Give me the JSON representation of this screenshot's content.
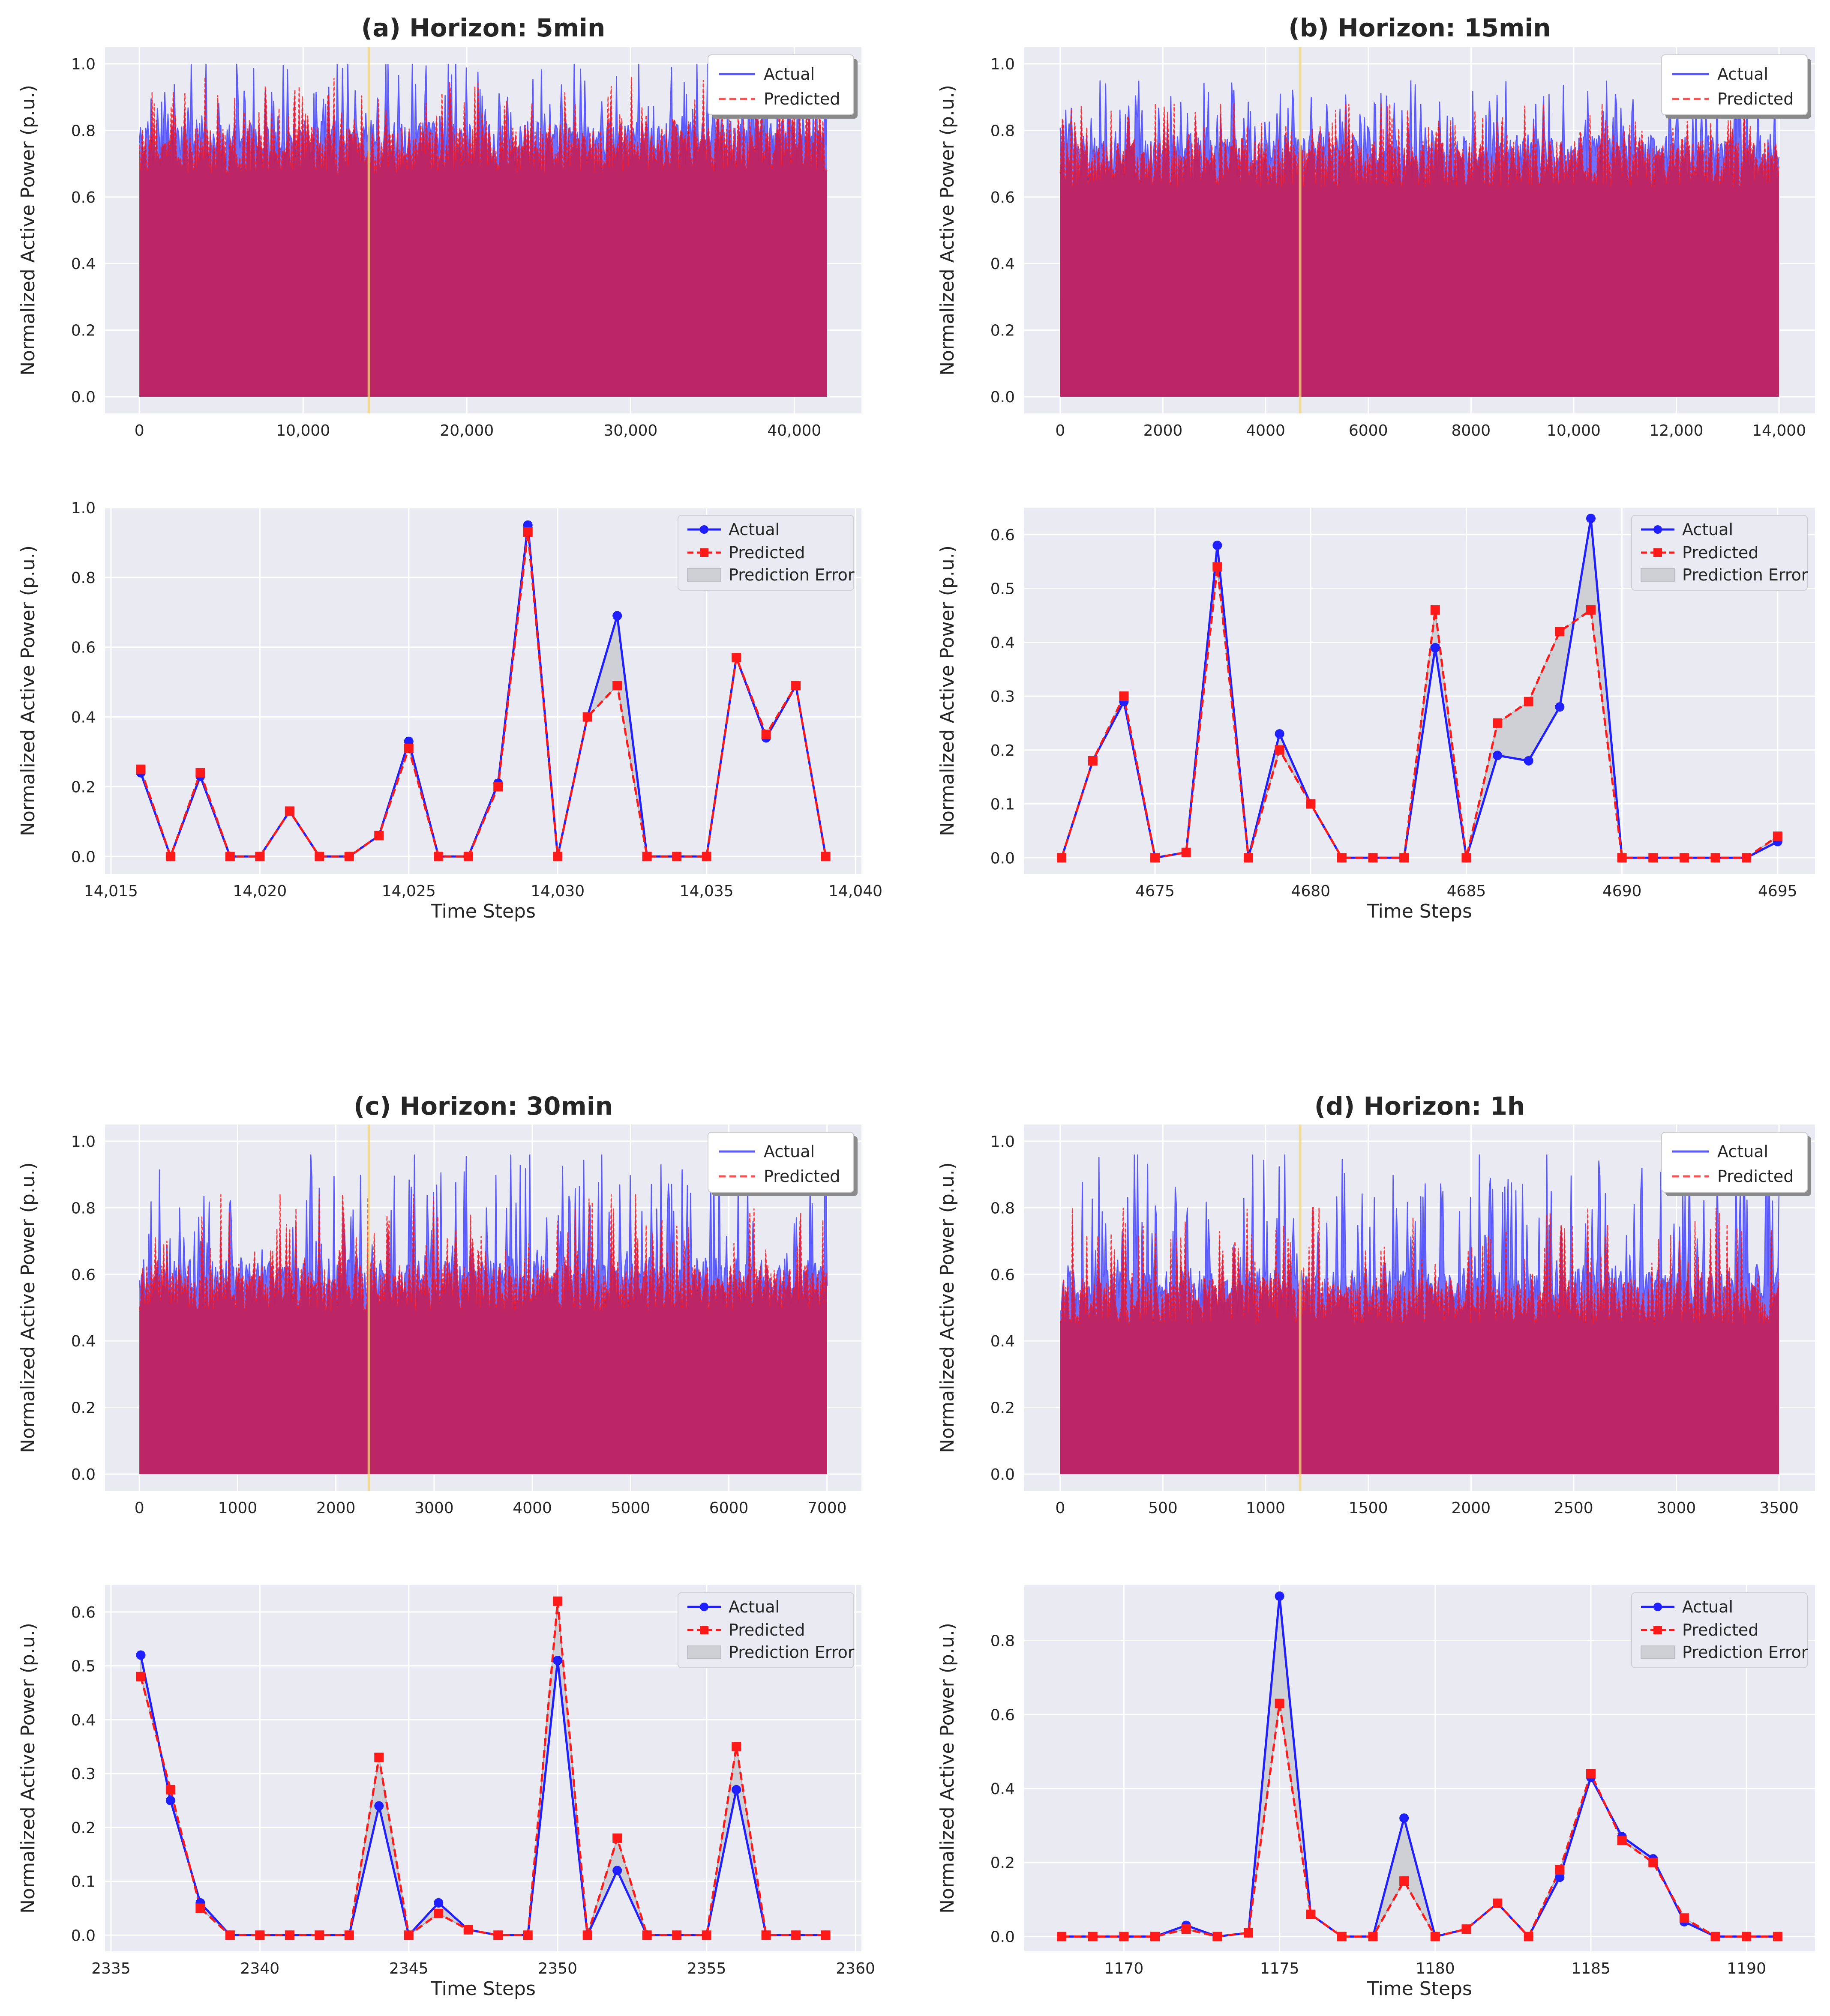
{
  "chart_data": [
    {
      "id": "a-overview",
      "type": "line",
      "title": "(a) Horizon: 5min",
      "xlabel": "",
      "ylabel": "Normalized Active Power (p.u.)",
      "xlim": [
        -2100,
        44100
      ],
      "ylim": [
        -0.05,
        1.05
      ],
      "xticks": [
        0,
        10000,
        20000,
        30000,
        40000
      ],
      "xtick_labels": [
        "0",
        "10,000",
        "20,000",
        "30,000",
        "40,000"
      ],
      "yticks": [
        0,
        0.2,
        0.4,
        0.6,
        0.8,
        1.0
      ],
      "ytick_labels": [
        "0.0",
        "0.2",
        "0.4",
        "0.6",
        "0.8",
        "1.0"
      ],
      "x_end": 42000,
      "highlight_x": 14016,
      "seed": 11,
      "envelope": {
        "actual_base": 0.76,
        "pred_base": 0.74,
        "actual_spike_max": 1.0,
        "pred_spike_max": 0.96
      },
      "legend": {
        "position": "upper-right",
        "entries": [
          "Actual",
          "Predicted"
        ]
      }
    },
    {
      "id": "a-zoom",
      "type": "line",
      "title": "",
      "xlabel": "Time Steps",
      "ylabel": "Normalized Active Power (p.u.)",
      "xlim": [
        14014.8,
        14040.2
      ],
      "ylim": [
        -0.05,
        1.0
      ],
      "xticks": [
        14015,
        14020,
        14025,
        14030,
        14035,
        14040
      ],
      "xtick_labels": [
        "14,015",
        "14,020",
        "14,025",
        "14,030",
        "14,035",
        "14,040"
      ],
      "yticks": [
        0,
        0.2,
        0.4,
        0.6,
        0.8,
        1.0
      ],
      "ytick_labels": [
        "0.0",
        "0.2",
        "0.4",
        "0.6",
        "0.8",
        "1.0"
      ],
      "x": [
        14016,
        14017,
        14018,
        14019,
        14020,
        14021,
        14022,
        14023,
        14024,
        14025,
        14026,
        14027,
        14028,
        14029,
        14030,
        14031,
        14032,
        14033,
        14034,
        14035,
        14036,
        14037,
        14038,
        14039
      ],
      "series": [
        {
          "name": "Actual",
          "values": [
            0.24,
            0.0,
            0.23,
            0.0,
            0.0,
            0.13,
            0.0,
            0.0,
            0.06,
            0.33,
            0.0,
            0.0,
            0.21,
            0.95,
            0.0,
            0.4,
            0.69,
            0.0,
            0.0,
            0.0,
            0.57,
            0.34,
            0.49,
            0.0
          ]
        },
        {
          "name": "Predicted",
          "values": [
            0.25,
            0.0,
            0.24,
            0.0,
            0.0,
            0.13,
            0.0,
            0.0,
            0.06,
            0.31,
            0.0,
            0.0,
            0.2,
            0.93,
            0.0,
            0.4,
            0.49,
            0.0,
            0.0,
            0.0,
            0.57,
            0.35,
            0.49,
            0.0
          ]
        }
      ],
      "legend": {
        "position": "upper-right",
        "entries": [
          "Actual",
          "Predicted",
          "Prediction Error"
        ]
      }
    },
    {
      "id": "b-overview",
      "type": "line",
      "title": "(b) Horizon: 15min",
      "xlabel": "",
      "ylabel": "Normalized Active Power (p.u.)",
      "xlim": [
        -700,
        14700
      ],
      "ylim": [
        -0.05,
        1.05
      ],
      "xticks": [
        0,
        2000,
        4000,
        6000,
        8000,
        10000,
        12000,
        14000
      ],
      "xtick_labels": [
        "0",
        "2000",
        "4000",
        "6000",
        "8000",
        "10,000",
        "12,000",
        "14,000"
      ],
      "yticks": [
        0,
        0.2,
        0.4,
        0.6,
        0.8,
        1.0
      ],
      "ytick_labels": [
        "0.0",
        "0.2",
        "0.4",
        "0.6",
        "0.8",
        "1.0"
      ],
      "x_end": 14000,
      "highlight_x": 4672,
      "seed": 23,
      "envelope": {
        "actual_base": 0.72,
        "pred_base": 0.7,
        "actual_spike_max": 0.95,
        "pred_spike_max": 0.88
      },
      "legend": {
        "position": "upper-right",
        "entries": [
          "Actual",
          "Predicted"
        ]
      }
    },
    {
      "id": "b-zoom",
      "type": "line",
      "title": "",
      "xlabel": "Time Steps",
      "ylabel": "Normalized Active Power (p.u.)",
      "xlim": [
        4670.8,
        4696.2
      ],
      "ylim": [
        -0.03,
        0.65
      ],
      "xticks": [
        4675,
        4680,
        4685,
        4690,
        4695
      ],
      "xtick_labels": [
        "4675",
        "4680",
        "4685",
        "4690",
        "4695"
      ],
      "yticks": [
        0,
        0.1,
        0.2,
        0.3,
        0.4,
        0.5,
        0.6
      ],
      "ytick_labels": [
        "0.0",
        "0.1",
        "0.2",
        "0.3",
        "0.4",
        "0.5",
        "0.6"
      ],
      "x": [
        4672,
        4673,
        4674,
        4675,
        4676,
        4677,
        4678,
        4679,
        4680,
        4681,
        4682,
        4683,
        4684,
        4685,
        4686,
        4687,
        4688,
        4689,
        4690,
        4691,
        4692,
        4693,
        4694,
        4695
      ],
      "series": [
        {
          "name": "Actual",
          "values": [
            0.0,
            0.18,
            0.29,
            0.0,
            0.01,
            0.58,
            0.0,
            0.23,
            0.1,
            0.0,
            0.0,
            0.0,
            0.39,
            0.0,
            0.19,
            0.18,
            0.28,
            0.63,
            0.0,
            0.0,
            0.0,
            0.0,
            0.0,
            0.03
          ]
        },
        {
          "name": "Predicted",
          "values": [
            0.0,
            0.18,
            0.3,
            0.0,
            0.01,
            0.54,
            0.0,
            0.2,
            0.1,
            0.0,
            0.0,
            0.0,
            0.46,
            0.0,
            0.25,
            0.29,
            0.42,
            0.46,
            0.0,
            0.0,
            0.0,
            0.0,
            0.0,
            0.04
          ]
        }
      ],
      "legend": {
        "position": "upper-right",
        "entries": [
          "Actual",
          "Predicted",
          "Prediction Error"
        ]
      }
    },
    {
      "id": "c-overview",
      "type": "line",
      "title": "(c) Horizon: 30min",
      "xlabel": "",
      "ylabel": "Normalized Active Power (p.u.)",
      "xlim": [
        -350,
        7350
      ],
      "ylim": [
        -0.05,
        1.05
      ],
      "xticks": [
        0,
        1000,
        2000,
        3000,
        4000,
        5000,
        6000,
        7000
      ],
      "xtick_labels": [
        "0",
        "1000",
        "2000",
        "3000",
        "4000",
        "5000",
        "6000",
        "7000"
      ],
      "yticks": [
        0,
        0.2,
        0.4,
        0.6,
        0.8,
        1.0
      ],
      "ytick_labels": [
        "0.0",
        "0.2",
        "0.4",
        "0.6",
        "0.8",
        "1.0"
      ],
      "x_end": 7000,
      "highlight_x": 2336,
      "seed": 37,
      "envelope": {
        "actual_base": 0.58,
        "pred_base": 0.56,
        "actual_spike_max": 0.96,
        "pred_spike_max": 0.84
      },
      "legend": {
        "position": "upper-right",
        "entries": [
          "Actual",
          "Predicted"
        ]
      }
    },
    {
      "id": "c-zoom",
      "type": "line",
      "title": "",
      "xlabel": "Time Steps",
      "ylabel": "Normalized Active Power (p.u.)",
      "xlim": [
        2334.8,
        2360.2
      ],
      "ylim": [
        -0.03,
        0.65
      ],
      "xticks": [
        2335,
        2340,
        2345,
        2350,
        2355,
        2360
      ],
      "xtick_labels": [
        "2335",
        "2340",
        "2345",
        "2350",
        "2355",
        "2360"
      ],
      "yticks": [
        0,
        0.1,
        0.2,
        0.3,
        0.4,
        0.5,
        0.6
      ],
      "ytick_labels": [
        "0.0",
        "0.1",
        "0.2",
        "0.3",
        "0.4",
        "0.5",
        "0.6"
      ],
      "x": [
        2336,
        2337,
        2338,
        2339,
        2340,
        2341,
        2342,
        2343,
        2344,
        2345,
        2346,
        2347,
        2348,
        2349,
        2350,
        2351,
        2352,
        2353,
        2354,
        2355,
        2356,
        2357,
        2358,
        2359
      ],
      "series": [
        {
          "name": "Actual",
          "values": [
            0.52,
            0.25,
            0.06,
            0.0,
            0.0,
            0.0,
            0.0,
            0.0,
            0.24,
            0.0,
            0.06,
            0.01,
            0.0,
            0.0,
            0.51,
            0.0,
            0.12,
            0.0,
            0.0,
            0.0,
            0.27,
            0.0,
            0.0,
            0.0
          ]
        },
        {
          "name": "Predicted",
          "values": [
            0.48,
            0.27,
            0.05,
            0.0,
            0.0,
            0.0,
            0.0,
            0.0,
            0.33,
            0.0,
            0.04,
            0.01,
            0.0,
            0.0,
            0.62,
            0.0,
            0.18,
            0.0,
            0.0,
            0.0,
            0.35,
            0.0,
            0.0,
            0.0
          ]
        }
      ],
      "legend": {
        "position": "upper-right",
        "entries": [
          "Actual",
          "Predicted",
          "Prediction Error"
        ]
      }
    },
    {
      "id": "d-overview",
      "type": "line",
      "title": "(d) Horizon: 1h",
      "xlabel": "",
      "ylabel": "Normalized Active Power (p.u.)",
      "xlim": [
        -175,
        3675
      ],
      "ylim": [
        -0.05,
        1.05
      ],
      "xticks": [
        0,
        500,
        1000,
        1500,
        2000,
        2500,
        3000,
        3500
      ],
      "xtick_labels": [
        "0",
        "500",
        "1000",
        "1500",
        "2000",
        "2500",
        "3000",
        "3500"
      ],
      "yticks": [
        0,
        0.2,
        0.4,
        0.6,
        0.8,
        1.0
      ],
      "ytick_labels": [
        "0.0",
        "0.2",
        "0.4",
        "0.6",
        "0.8",
        "1.0"
      ],
      "x_end": 3500,
      "highlight_x": 1168,
      "seed": 53,
      "envelope": {
        "actual_base": 0.55,
        "pred_base": 0.52,
        "actual_spike_max": 0.96,
        "pred_spike_max": 0.8
      },
      "legend": {
        "position": "upper-right",
        "entries": [
          "Actual",
          "Predicted"
        ]
      }
    },
    {
      "id": "d-zoom",
      "type": "line",
      "title": "",
      "xlabel": "Time Steps",
      "ylabel": "Normalized Active Power (p.u.)",
      "xlim": [
        1166.8,
        1192.2
      ],
      "ylim": [
        -0.04,
        0.95
      ],
      "xticks": [
        1170,
        1175,
        1180,
        1185,
        1190
      ],
      "xtick_labels": [
        "1170",
        "1175",
        "1180",
        "1185",
        "1190"
      ],
      "yticks": [
        0,
        0.2,
        0.4,
        0.6,
        0.8
      ],
      "ytick_labels": [
        "0.0",
        "0.2",
        "0.4",
        "0.6",
        "0.8"
      ],
      "x": [
        1168,
        1169,
        1170,
        1171,
        1172,
        1173,
        1174,
        1175,
        1176,
        1177,
        1178,
        1179,
        1180,
        1181,
        1182,
        1183,
        1184,
        1185,
        1186,
        1187,
        1188,
        1189,
        1190,
        1191
      ],
      "series": [
        {
          "name": "Actual",
          "values": [
            0.0,
            0.0,
            0.0,
            0.0,
            0.03,
            0.0,
            0.01,
            0.92,
            0.06,
            0.0,
            0.0,
            0.32,
            0.0,
            0.02,
            0.09,
            0.0,
            0.16,
            0.43,
            0.27,
            0.21,
            0.04,
            0.0,
            0.0,
            0.0
          ]
        },
        {
          "name": "Predicted",
          "values": [
            0.0,
            0.0,
            0.0,
            0.0,
            0.02,
            0.0,
            0.01,
            0.63,
            0.06,
            0.0,
            0.0,
            0.15,
            0.0,
            0.02,
            0.09,
            0.0,
            0.18,
            0.44,
            0.26,
            0.2,
            0.05,
            0.0,
            0.0,
            0.0
          ]
        }
      ],
      "legend": {
        "position": "upper-right",
        "entries": [
          "Actual",
          "Predicted",
          "Prediction Error"
        ]
      }
    }
  ],
  "colors": {
    "actual": "#1f1fff",
    "actual_overview": "#5a5aff",
    "predicted": "#ff1a1a",
    "fill_overview": "#c0225f",
    "axes_bg": "#eaeaf2",
    "grid": "#ffffff",
    "error_fill": "#cfcfd6",
    "highlight": "#f5d77a",
    "text": "#262626"
  }
}
